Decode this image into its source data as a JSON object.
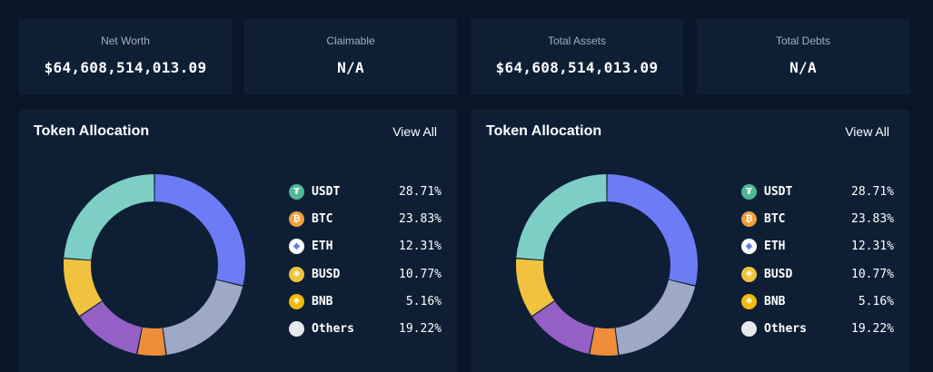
{
  "stats": [
    {
      "label": "Net Worth",
      "value": "$64,608,514,013.09"
    },
    {
      "label": "Claimable",
      "value": "N/A"
    },
    {
      "label": "Total Assets",
      "value": "$64,608,514,013.09"
    },
    {
      "label": "Total Debts",
      "value": "N/A"
    }
  ],
  "panels": [
    {
      "title": "Token Allocation",
      "view_all": "View All"
    },
    {
      "title": "Token Allocation",
      "view_all": "View All"
    }
  ],
  "tokens": [
    {
      "name": "USDT",
      "pct": "28.71%",
      "icon": "tether-icon",
      "glyph": "₮",
      "icon_bg": "#4eb79a",
      "icon_fg": "#ffffff"
    },
    {
      "name": "BTC",
      "pct": "23.83%",
      "icon": "bitcoin-icon",
      "glyph": "₿",
      "icon_bg": "#f2a03b",
      "icon_fg": "#ffffff"
    },
    {
      "name": "ETH",
      "pct": "12.31%",
      "icon": "ethereum-icon",
      "glyph": "◆",
      "icon_bg": "#ffffff",
      "icon_fg": "#627eea"
    },
    {
      "name": "BUSD",
      "pct": "10.77%",
      "icon": "busd-icon",
      "glyph": "◈",
      "icon_bg": "#f0c43a",
      "icon_fg": "#ffffff"
    },
    {
      "name": "BNB",
      "pct": "5.16%",
      "icon": "bnb-icon",
      "glyph": "◈",
      "icon_bg": "#f0b90b",
      "icon_fg": "#ffffff"
    },
    {
      "name": "Others",
      "pct": "19.22%",
      "icon": "others-icon",
      "glyph": "",
      "icon_bg": "#e6e9ee",
      "icon_fg": "#e6e9ee"
    }
  ],
  "chart_data": {
    "type": "pie",
    "title": "Token Allocation",
    "categories": [
      "USDT",
      "BTC",
      "ETH",
      "BUSD",
      "BNB",
      "Others"
    ],
    "values": [
      28.71,
      23.83,
      12.31,
      10.77,
      5.16,
      19.22
    ],
    "order_clockwise_from_top": [
      "USDT",
      "Others",
      "BNB",
      "ETH",
      "BUSD",
      "BTC"
    ],
    "colors": {
      "USDT": "#6b7cf6",
      "Others": "#9ea9c8",
      "BNB": "#ef8e3a",
      "ETH": "#9560c5",
      "BUSD": "#f0c23e",
      "BTC": "#7dcfc6"
    }
  }
}
